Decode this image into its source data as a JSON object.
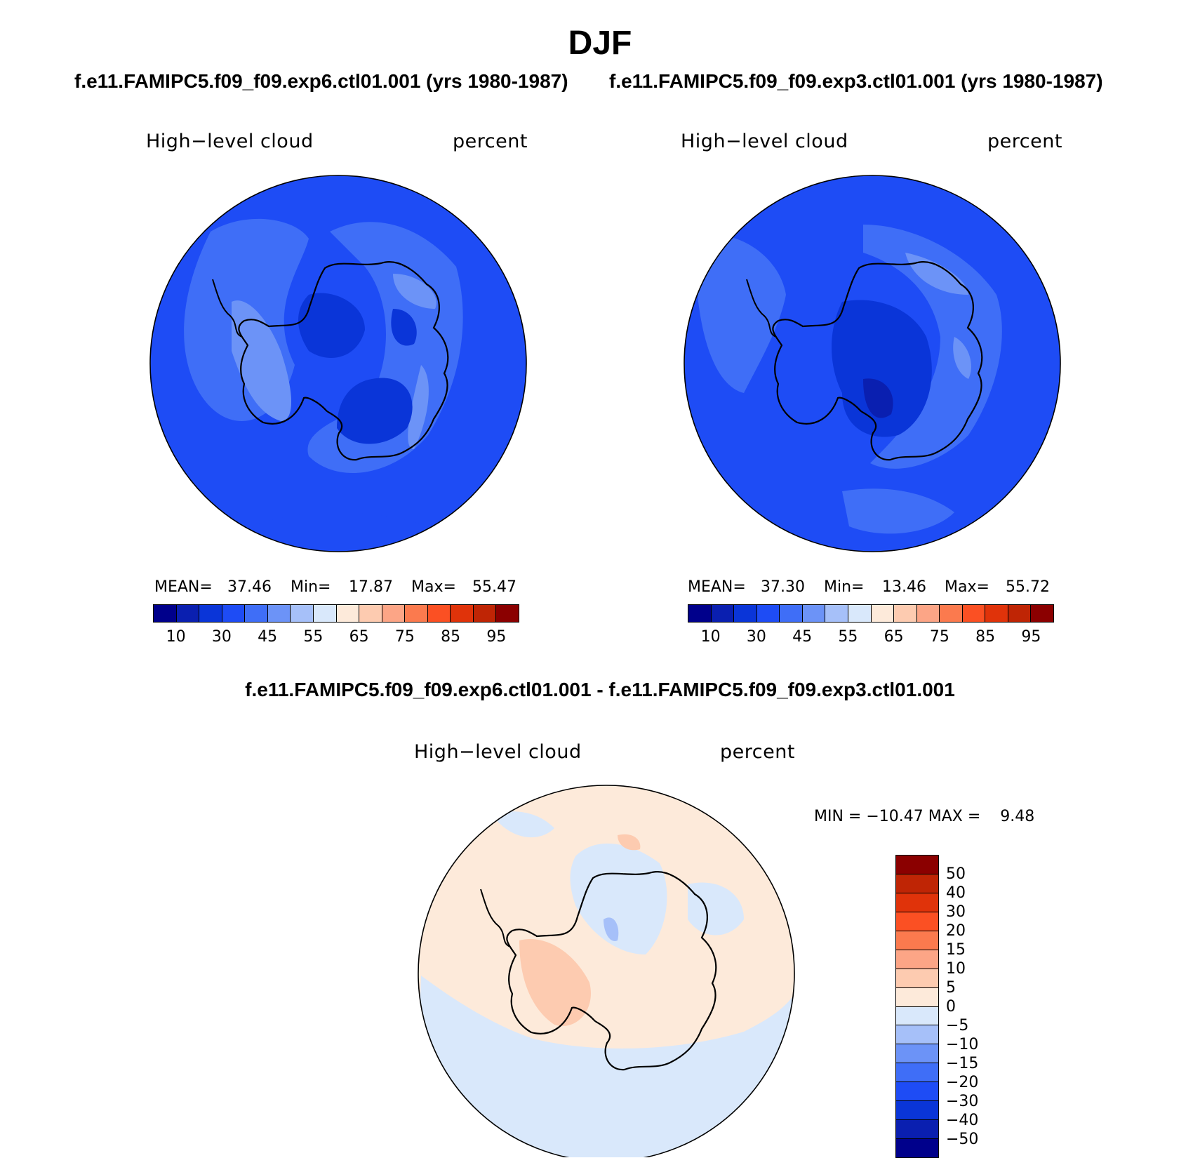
{
  "title": "DJF",
  "panels": [
    {
      "case": "f.e11.FAMIPC5.f09_f09.exp6.ctl01.001 (yrs 1980-1987)",
      "variable": "High−level cloud",
      "units": "percent",
      "mean_label": "MEAN=",
      "mean": "37.46",
      "min_label": "Min=",
      "min": "17.87",
      "max_label": "Max=",
      "max": "55.47"
    },
    {
      "case": "f.e11.FAMIPC5.f09_f09.exp3.ctl01.001 (yrs 1980-1987)",
      "variable": "High−level cloud",
      "units": "percent",
      "mean_label": "MEAN=",
      "mean": "37.30",
      "min_label": "Min=",
      "min": "13.46",
      "max_label": "Max=",
      "max": "55.72"
    }
  ],
  "colorbar": {
    "ticks": [
      "10",
      "30",
      "45",
      "55",
      "65",
      "75",
      "85",
      "95"
    ],
    "colors": [
      "#00008b",
      "#0a1fb0",
      "#0a35d8",
      "#1e4cf5",
      "#3f6ef7",
      "#6c93f7",
      "#a6c0f9",
      "#d9e8fb",
      "#fdeada",
      "#fdcbb0",
      "#fca586",
      "#fb7a4e",
      "#fb5023",
      "#e0330a",
      "#bf2505",
      "#8b0000"
    ]
  },
  "difference": {
    "title": "f.e11.FAMIPC5.f09_f09.exp6.ctl01.001 - f.e11.FAMIPC5.f09_f09.exp3.ctl01.001",
    "variable": "High−level cloud",
    "units": "percent",
    "minmax": "MIN = −10.47 MAX =    9.48",
    "ticks": [
      "50",
      "40",
      "30",
      "20",
      "15",
      "10",
      "5",
      "0",
      "−5",
      "−10",
      "−15",
      "−20",
      "−30",
      "−40",
      "−50"
    ],
    "colors": [
      "#8b0000",
      "#bf2505",
      "#e0330a",
      "#fb5023",
      "#fb7a4e",
      "#fca586",
      "#fdcbb0",
      "#fdeada",
      "#d9e8fb",
      "#a6c0f9",
      "#6c93f7",
      "#3f6ef7",
      "#1e4cf5",
      "#0a35d8",
      "#0a1fb0",
      "#00008b"
    ]
  }
}
